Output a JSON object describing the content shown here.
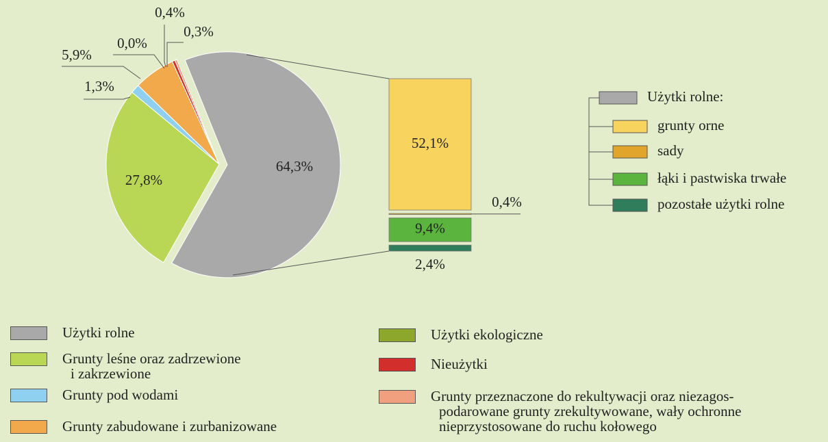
{
  "chart_data": {
    "type": "pie",
    "categories": [
      "Użytki rolne",
      "Grunty leśne oraz zadrzewione\ni zakrzewione",
      "Grunty pod wodami",
      "Grunty zabudowane i zurbanizowane",
      "Użytki ekologiczne",
      "Nieużytki",
      "Grunty przeznaczone do rekultywacji oraz niezagos-\npodarowane grunty  zrekultywowane, wały ochronne\nnieprzystosowane do ruchu kołowego"
    ],
    "values": [
      64.3,
      27.8,
      1.3,
      5.9,
      0.0,
      0.4,
      0.3
    ],
    "value_labels": [
      "64,3%",
      "27,8%",
      "1,3%",
      "5,9%",
      "0,0%",
      "0,4%",
      "0,3%"
    ],
    "colors": [
      "#a9a9a9",
      "#bad655",
      "#8fd0f0",
      "#f2a94b",
      "#8da62c",
      "#d22f2c",
      "#f0a07e"
    ],
    "breakdown": {
      "title": "Użytki rolne:",
      "categories": [
        "grunty orne",
        "sady",
        "łąki i pastwiska trwałe",
        "pozostałe użytki rolne"
      ],
      "values": [
        52.1,
        0.4,
        9.4,
        2.4
      ],
      "value_labels": [
        "52,1%",
        "0,4%",
        "9,4%",
        "2,4%"
      ],
      "colors": [
        "#f8d45e",
        "#e1a52b",
        "#5bb43d",
        "#2f7d5b"
      ]
    }
  }
}
